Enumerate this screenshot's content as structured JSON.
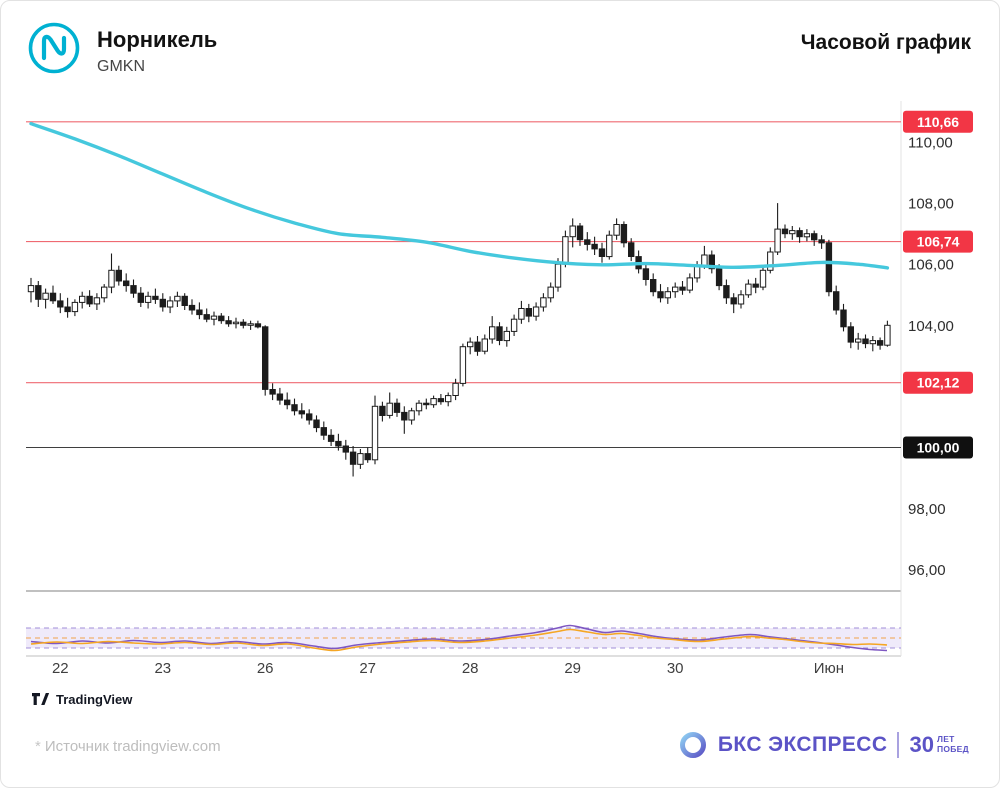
{
  "header": {
    "title": "Норникель",
    "ticker": "GMKN",
    "timeframe_label": "Часовой график"
  },
  "watermark": {
    "label": "TradingView"
  },
  "footer": {
    "star": "*",
    "source_note": "Источник tradingview.com",
    "brand_name": "БКС ЭКСПРЕСС",
    "brand_badge_number": "30",
    "brand_badge_line1": "ЛЕТ",
    "brand_badge_line2": "ПОБЕД"
  },
  "chart_data": {
    "type": "candlestick",
    "instrument": "Норникель (GMKN)",
    "timeframe": "1 час",
    "y_axis": {
      "range": [
        95.2,
        111.2
      ],
      "ticks": [
        {
          "label": "110,00",
          "value": 110
        },
        {
          "label": "108,00",
          "value": 108
        },
        {
          "label": "106,00",
          "value": 106
        },
        {
          "label": "104,00",
          "value": 104
        },
        {
          "label": "98,00",
          "value": 98
        },
        {
          "label": "96,00",
          "value": 96
        }
      ]
    },
    "levels": [
      {
        "label": "110,66",
        "value": 110.66,
        "badge_color": "#f23645",
        "line_color": "#ef6a72"
      },
      {
        "label": "106,74",
        "value": 106.74,
        "badge_color": "#f23645",
        "line_color": "#ef6a72"
      },
      {
        "label": "102,12",
        "value": 102.12,
        "badge_color": "#f23645",
        "line_color": "#ef6a72"
      },
      {
        "label": "100,00",
        "value": 100.0,
        "badge_color": "#101010",
        "line_color": "#3f3f3f"
      }
    ],
    "x_axis": {
      "labels": [
        {
          "text": "22",
          "index": 4
        },
        {
          "text": "23",
          "index": 18
        },
        {
          "text": "26",
          "index": 32
        },
        {
          "text": "27",
          "index": 46
        },
        {
          "text": "28",
          "index": 60
        },
        {
          "text": "29",
          "index": 74
        },
        {
          "text": "30",
          "index": 88
        },
        {
          "text": "Июн",
          "index": 109
        }
      ]
    },
    "candles": [
      [
        105.1,
        105.55,
        104.75,
        105.3
      ],
      [
        105.3,
        105.45,
        104.6,
        104.85
      ],
      [
        104.85,
        105.2,
        104.55,
        105.05
      ],
      [
        105.05,
        105.3,
        104.7,
        104.8
      ],
      [
        104.8,
        105.05,
        104.4,
        104.6
      ],
      [
        104.6,
        104.9,
        104.25,
        104.45
      ],
      [
        104.45,
        104.85,
        104.3,
        104.75
      ],
      [
        104.75,
        105.1,
        104.55,
        104.95
      ],
      [
        104.95,
        105.15,
        104.6,
        104.7
      ],
      [
        104.7,
        105.05,
        104.5,
        104.9
      ],
      [
        104.9,
        105.35,
        104.75,
        105.25
      ],
      [
        105.25,
        106.35,
        105.05,
        105.8
      ],
      [
        105.8,
        105.95,
        105.3,
        105.45
      ],
      [
        105.45,
        105.7,
        105.1,
        105.3
      ],
      [
        105.3,
        105.5,
        104.9,
        105.05
      ],
      [
        105.05,
        105.25,
        104.6,
        104.75
      ],
      [
        104.75,
        105.1,
        104.55,
        104.95
      ],
      [
        104.95,
        105.2,
        104.7,
        104.85
      ],
      [
        104.85,
        105.05,
        104.45,
        104.6
      ],
      [
        104.6,
        104.95,
        104.4,
        104.8
      ],
      [
        104.8,
        105.1,
        104.6,
        104.95
      ],
      [
        104.95,
        105.05,
        104.5,
        104.65
      ],
      [
        104.65,
        104.85,
        104.35,
        104.5
      ],
      [
        104.5,
        104.75,
        104.2,
        104.35
      ],
      [
        104.35,
        104.55,
        104.1,
        104.2
      ],
      [
        104.2,
        104.45,
        104.0,
        104.3
      ],
      [
        104.3,
        104.4,
        104.05,
        104.15
      ],
      [
        104.15,
        104.3,
        103.95,
        104.05
      ],
      [
        104.05,
        104.25,
        103.9,
        104.1
      ],
      [
        104.1,
        104.2,
        103.9,
        104.0
      ],
      [
        104.0,
        104.15,
        103.85,
        104.05
      ],
      [
        104.05,
        104.15,
        103.9,
        103.95
      ],
      [
        103.95,
        104.0,
        101.7,
        101.9
      ],
      [
        101.9,
        102.1,
        101.55,
        101.75
      ],
      [
        101.75,
        101.95,
        101.4,
        101.55
      ],
      [
        101.55,
        101.8,
        101.25,
        101.4
      ],
      [
        101.4,
        101.6,
        101.05,
        101.2
      ],
      [
        101.2,
        101.45,
        100.95,
        101.1
      ],
      [
        101.1,
        101.25,
        100.75,
        100.9
      ],
      [
        100.9,
        101.05,
        100.5,
        100.65
      ],
      [
        100.65,
        100.85,
        100.25,
        100.4
      ],
      [
        100.4,
        100.6,
        100.05,
        100.2
      ],
      [
        100.2,
        100.45,
        99.9,
        100.05
      ],
      [
        100.05,
        100.25,
        99.6,
        99.85
      ],
      [
        99.85,
        100.05,
        99.05,
        99.45
      ],
      [
        99.45,
        99.95,
        99.3,
        99.8
      ],
      [
        99.8,
        100.0,
        99.5,
        99.6
      ],
      [
        99.6,
        101.7,
        99.45,
        101.35
      ],
      [
        101.35,
        101.5,
        100.85,
        101.05
      ],
      [
        101.05,
        101.8,
        100.95,
        101.45
      ],
      [
        101.45,
        101.6,
        101.0,
        101.15
      ],
      [
        101.15,
        101.35,
        100.45,
        100.9
      ],
      [
        100.9,
        101.3,
        100.75,
        101.2
      ],
      [
        101.2,
        101.55,
        101.05,
        101.45
      ],
      [
        101.45,
        101.6,
        101.25,
        101.4
      ],
      [
        101.4,
        101.7,
        101.3,
        101.6
      ],
      [
        101.6,
        101.75,
        101.4,
        101.5
      ],
      [
        101.5,
        101.8,
        101.35,
        101.7
      ],
      [
        101.7,
        102.25,
        101.55,
        102.1
      ],
      [
        102.1,
        103.4,
        102.0,
        103.3
      ],
      [
        103.3,
        103.6,
        103.05,
        103.45
      ],
      [
        103.45,
        103.65,
        103.0,
        103.15
      ],
      [
        103.15,
        103.7,
        103.05,
        103.55
      ],
      [
        103.55,
        104.3,
        103.4,
        103.95
      ],
      [
        103.95,
        104.1,
        103.35,
        103.5
      ],
      [
        103.5,
        103.95,
        103.3,
        103.8
      ],
      [
        103.8,
        104.35,
        103.65,
        104.2
      ],
      [
        104.2,
        104.8,
        104.05,
        104.55
      ],
      [
        104.55,
        104.7,
        104.1,
        104.3
      ],
      [
        104.3,
        104.75,
        104.15,
        104.6
      ],
      [
        104.6,
        105.05,
        104.45,
        104.9
      ],
      [
        104.9,
        105.4,
        104.75,
        105.25
      ],
      [
        105.25,
        106.2,
        105.1,
        106.0
      ],
      [
        106.0,
        107.1,
        105.9,
        106.9
      ],
      [
        106.9,
        107.5,
        106.55,
        107.25
      ],
      [
        107.25,
        107.35,
        106.6,
        106.8
      ],
      [
        106.8,
        107.05,
        106.45,
        106.65
      ],
      [
        106.65,
        106.9,
        106.3,
        106.5
      ],
      [
        106.5,
        106.7,
        106.05,
        106.25
      ],
      [
        106.25,
        107.1,
        106.15,
        106.95
      ],
      [
        106.95,
        107.5,
        106.8,
        107.3
      ],
      [
        107.3,
        107.4,
        106.55,
        106.7
      ],
      [
        106.7,
        106.85,
        106.1,
        106.25
      ],
      [
        106.25,
        106.45,
        105.7,
        105.85
      ],
      [
        105.85,
        106.0,
        105.3,
        105.5
      ],
      [
        105.5,
        105.7,
        104.95,
        105.1
      ],
      [
        105.1,
        105.35,
        104.75,
        104.9
      ],
      [
        104.9,
        105.25,
        104.7,
        105.1
      ],
      [
        105.1,
        105.4,
        104.9,
        105.25
      ],
      [
        105.25,
        105.45,
        105.0,
        105.15
      ],
      [
        105.15,
        105.7,
        105.05,
        105.55
      ],
      [
        105.55,
        106.1,
        105.4,
        105.95
      ],
      [
        105.95,
        106.6,
        105.85,
        106.3
      ],
      [
        106.3,
        106.45,
        105.7,
        105.85
      ],
      [
        105.85,
        106.0,
        105.15,
        105.3
      ],
      [
        105.3,
        105.5,
        104.7,
        104.9
      ],
      [
        104.9,
        105.05,
        104.4,
        104.7
      ],
      [
        104.7,
        105.15,
        104.55,
        105.0
      ],
      [
        105.0,
        105.5,
        104.9,
        105.35
      ],
      [
        105.35,
        105.55,
        105.05,
        105.25
      ],
      [
        105.25,
        105.95,
        105.15,
        105.8
      ],
      [
        105.8,
        106.55,
        105.7,
        106.4
      ],
      [
        106.4,
        108.0,
        106.3,
        107.15
      ],
      [
        107.15,
        107.3,
        106.85,
        107.0
      ],
      [
        107.0,
        107.25,
        106.8,
        107.1
      ],
      [
        107.1,
        107.2,
        106.7,
        106.9
      ],
      [
        106.9,
        107.15,
        106.75,
        107.0
      ],
      [
        107.0,
        107.1,
        106.6,
        106.8
      ],
      [
        106.8,
        106.95,
        106.5,
        106.7
      ],
      [
        106.7,
        106.8,
        104.95,
        105.1
      ],
      [
        105.1,
        105.3,
        104.35,
        104.5
      ],
      [
        104.5,
        104.7,
        103.8,
        103.95
      ],
      [
        103.95,
        104.1,
        103.25,
        103.45
      ],
      [
        103.45,
        103.75,
        103.2,
        103.55
      ],
      [
        103.55,
        103.7,
        103.25,
        103.4
      ],
      [
        103.4,
        103.65,
        103.15,
        103.5
      ],
      [
        103.5,
        103.6,
        103.2,
        103.35
      ],
      [
        103.35,
        104.15,
        103.3,
        104.0
      ]
    ],
    "ma": {
      "name": "moving-average",
      "color": "#45c8dd",
      "points": [
        [
          0,
          110.6
        ],
        [
          6,
          110.1
        ],
        [
          12,
          109.55
        ],
        [
          18,
          108.95
        ],
        [
          24,
          108.35
        ],
        [
          30,
          107.8
        ],
        [
          36,
          107.35
        ],
        [
          42,
          107.0
        ],
        [
          48,
          106.88
        ],
        [
          54,
          106.72
        ],
        [
          60,
          106.42
        ],
        [
          66,
          106.2
        ],
        [
          72,
          106.05
        ],
        [
          78,
          105.98
        ],
        [
          84,
          106.02
        ],
        [
          90,
          105.96
        ],
        [
          96,
          105.9
        ],
        [
          102,
          105.96
        ],
        [
          108,
          106.06
        ],
        [
          113,
          106.0
        ],
        [
          117,
          105.88
        ]
      ]
    },
    "oscillator": {
      "band_color": "#efeafa",
      "edge_color": "#a18fd8",
      "mid_color": "#f0a24a",
      "series": [
        {
          "name": "purple-line",
          "color": "#7e57c2",
          "points": [
            [
              0,
              -0.35
            ],
            [
              0.03,
              -0.55
            ],
            [
              0.06,
              -0.3
            ],
            [
              0.09,
              -0.5
            ],
            [
              0.12,
              -0.25
            ],
            [
              0.15,
              -0.45
            ],
            [
              0.18,
              -0.3
            ],
            [
              0.21,
              -0.55
            ],
            [
              0.24,
              -0.35
            ],
            [
              0.27,
              -0.6
            ],
            [
              0.3,
              -0.45
            ],
            [
              0.33,
              -0.8
            ],
            [
              0.355,
              -1.05
            ],
            [
              0.38,
              -0.7
            ],
            [
              0.41,
              -0.45
            ],
            [
              0.44,
              -0.25
            ],
            [
              0.47,
              -0.1
            ],
            [
              0.5,
              -0.3
            ],
            [
              0.53,
              -0.15
            ],
            [
              0.56,
              0.2
            ],
            [
              0.59,
              0.55
            ],
            [
              0.615,
              1.0
            ],
            [
              0.63,
              1.25
            ],
            [
              0.65,
              0.9
            ],
            [
              0.67,
              0.55
            ],
            [
              0.69,
              0.7
            ],
            [
              0.71,
              0.45
            ],
            [
              0.73,
              0.15
            ],
            [
              0.75,
              -0.05
            ],
            [
              0.78,
              -0.2
            ],
            [
              0.81,
              0.1
            ],
            [
              0.84,
              0.35
            ],
            [
              0.86,
              0.15
            ],
            [
              0.88,
              -0.05
            ],
            [
              0.9,
              -0.25
            ],
            [
              0.92,
              -0.45
            ],
            [
              0.94,
              -0.7
            ],
            [
              0.96,
              -0.95
            ],
            [
              0.98,
              -1.15
            ],
            [
              1,
              -1.25
            ]
          ]
        },
        {
          "name": "orange-line",
          "color": "#f5a623",
          "points": [
            [
              0,
              -0.6
            ],
            [
              0.03,
              -0.4
            ],
            [
              0.06,
              -0.55
            ],
            [
              0.09,
              -0.35
            ],
            [
              0.12,
              -0.5
            ],
            [
              0.15,
              -0.6
            ],
            [
              0.18,
              -0.45
            ],
            [
              0.21,
              -0.65
            ],
            [
              0.24,
              -0.5
            ],
            [
              0.27,
              -0.75
            ],
            [
              0.3,
              -0.6
            ],
            [
              0.33,
              -1.0
            ],
            [
              0.355,
              -1.25
            ],
            [
              0.38,
              -0.9
            ],
            [
              0.41,
              -0.6
            ],
            [
              0.44,
              -0.4
            ],
            [
              0.47,
              -0.25
            ],
            [
              0.5,
              -0.45
            ],
            [
              0.53,
              -0.3
            ],
            [
              0.56,
              0.0
            ],
            [
              0.59,
              0.3
            ],
            [
              0.615,
              0.65
            ],
            [
              0.63,
              0.85
            ],
            [
              0.65,
              0.6
            ],
            [
              0.67,
              0.35
            ],
            [
              0.69,
              0.45
            ],
            [
              0.71,
              0.25
            ],
            [
              0.73,
              0.0
            ],
            [
              0.75,
              -0.15
            ],
            [
              0.78,
              -0.35
            ],
            [
              0.81,
              -0.1
            ],
            [
              0.84,
              0.15
            ],
            [
              0.86,
              0.0
            ],
            [
              0.88,
              -0.15
            ],
            [
              0.9,
              -0.35
            ],
            [
              0.92,
              -0.5
            ],
            [
              0.94,
              -0.55
            ],
            [
              0.96,
              -0.65
            ],
            [
              0.98,
              -0.6
            ],
            [
              1,
              -0.7
            ]
          ]
        }
      ]
    }
  }
}
